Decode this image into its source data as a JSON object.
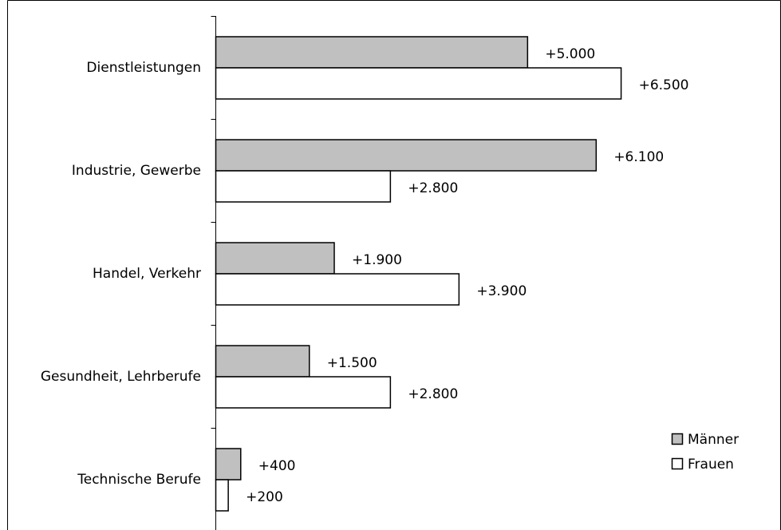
{
  "chart_data": {
    "type": "hbar",
    "categories": [
      "Dienstleistungen",
      "Industrie, Gewerbe",
      "Handel, Verkehr",
      "Gesundheit, Lehrberufe",
      "Technische Berufe"
    ],
    "series": [
      {
        "name": "Männer",
        "color": "#c0c0c0",
        "values": [
          5000,
          6100,
          1900,
          1500,
          400
        ],
        "value_labels": [
          "+5.000",
          "+6.100",
          "+1.900",
          "+1.500",
          "+400"
        ]
      },
      {
        "name": "Frauen",
        "color": "#ffffff",
        "values": [
          6500,
          2800,
          3900,
          2800,
          200
        ],
        "value_labels": [
          "+6.500",
          "+2.800",
          "+3.900",
          "+2.800",
          "+200"
        ]
      }
    ],
    "xlim": [
      0,
      9000
    ],
    "legend": "lower right"
  }
}
